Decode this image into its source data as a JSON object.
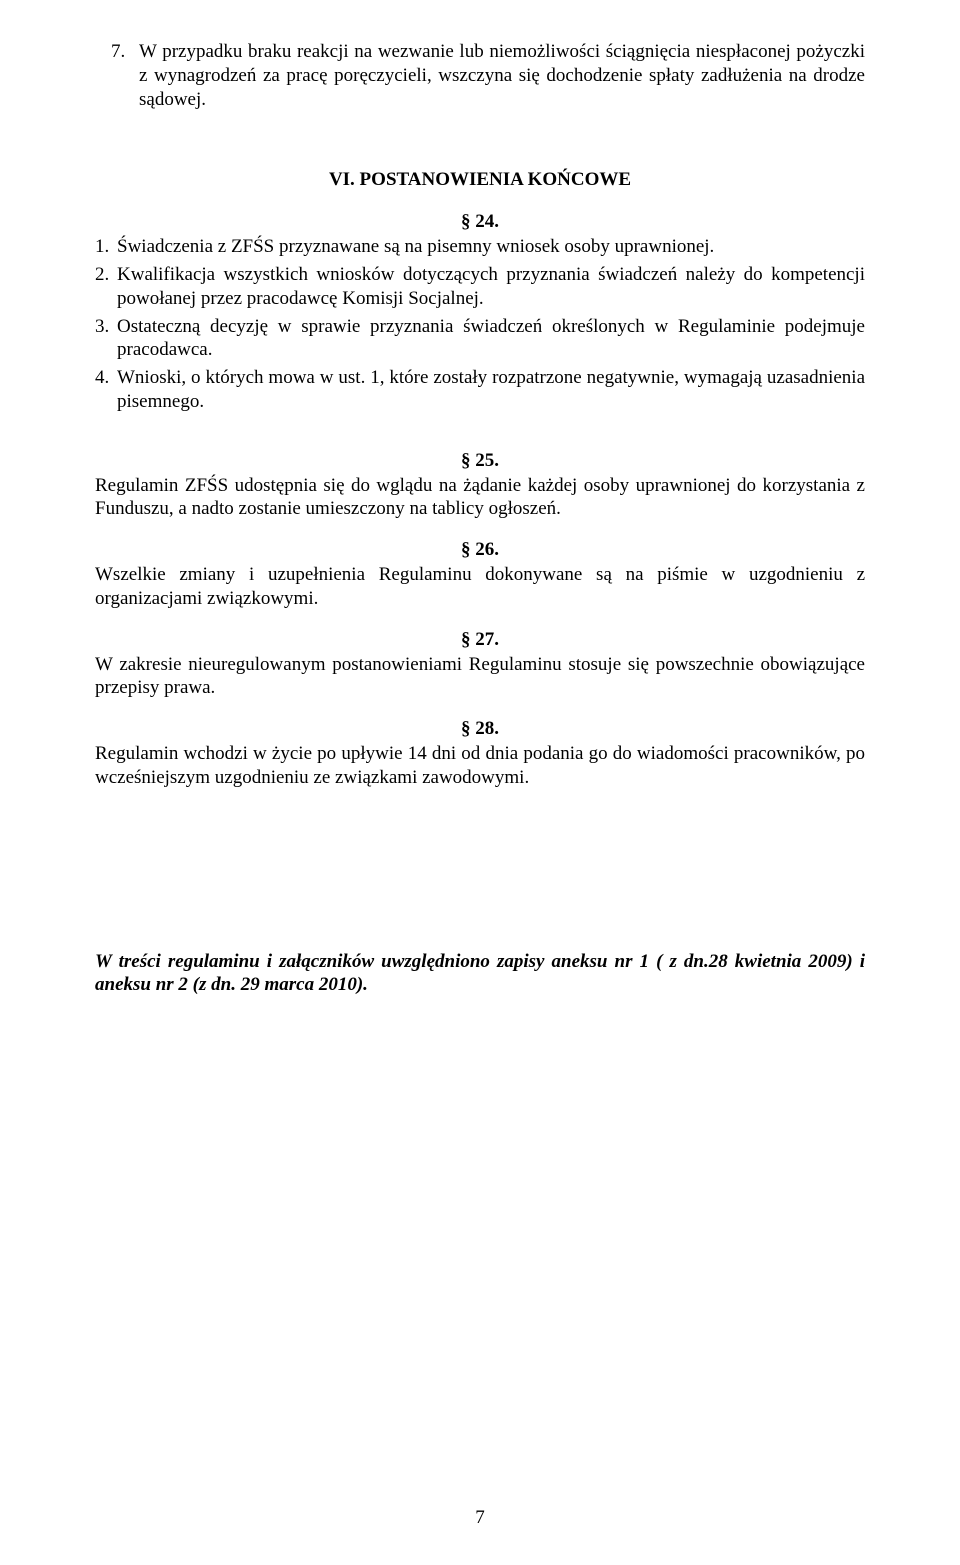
{
  "item7": {
    "num": "7.",
    "text": "W przypadku braku reakcji na wezwanie lub niemożliwości ściągnięcia niespłaconej pożyczki z wynagrodzeń za pracę poręczycieli, wszczyna się dochodzenie spłaty zadłużenia na drodze sądowej."
  },
  "section6": {
    "title": "VI. POSTANOWIENIA KOŃCOWE"
  },
  "p24": {
    "num": "§ 24.",
    "items": [
      {
        "num": "1.",
        "text": "Świadczenia z ZFŚS przyznawane są na pisemny wniosek osoby uprawnionej."
      },
      {
        "num": "2.",
        "text": "Kwalifikacja wszystkich wniosków dotyczących przyznania świadczeń należy do kompetencji powołanej przez pracodawcę Komisji Socjalnej."
      },
      {
        "num": "3.",
        "text": "Ostateczną decyzję w sprawie przyznania świadczeń określonych w Regulaminie podejmuje pracodawca."
      },
      {
        "num": "4.",
        "text": "Wnioski, o których mowa w ust. 1, które zostały rozpatrzone negatywnie, wymagają uzasadnienia pisemnego."
      }
    ]
  },
  "p25": {
    "num": "§ 25.",
    "text": "Regulamin ZFŚS udostępnia się do wglądu na żądanie każdej osoby uprawnionej do korzystania z Funduszu, a nadto zostanie umieszczony na tablicy ogłoszeń."
  },
  "p26": {
    "num": "§ 26.",
    "text": "Wszelkie zmiany i uzupełnienia Regulaminu dokonywane są na piśmie w uzgodnieniu z organizacjami związkowymi."
  },
  "p27": {
    "num": "§ 27.",
    "text": "W zakresie nieuregulowanym postanowieniami Regulaminu stosuje się powszechnie obowiązujące przepisy prawa."
  },
  "p28": {
    "num": "§ 28.",
    "text": "Regulamin wchodzi w życie po upływie 14 dni od dnia podania go do wiadomości pracowników, po wcześniejszym uzgodnieniu ze związkami zawodowymi."
  },
  "note": "W treści regulaminu i załączników uwzględniono zapisy aneksu nr 1 ( z dn.28 kwietnia 2009) i aneksu nr 2 (z dn. 29 marca 2010).",
  "pageNumber": "7"
}
